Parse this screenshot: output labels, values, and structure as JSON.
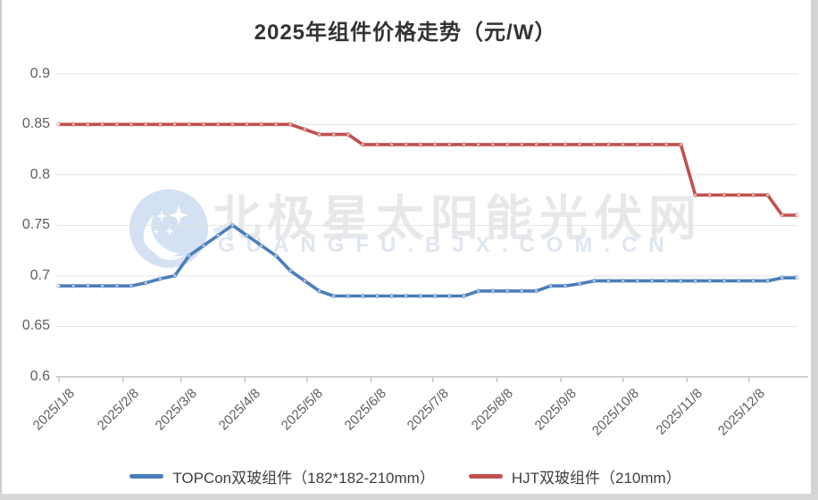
{
  "title": "2025年组件价格走势（元/W）",
  "watermark": {
    "brand_text": "北极星太阳能光伏网",
    "url_text": "GUANGFU.BJX.COM.CN",
    "logo": "crescent-moon-with-stars",
    "logo_color": "#d3e1f3"
  },
  "colors": {
    "topcon_line": "#4a7ebb",
    "hjt_line": "#c0504d",
    "gridline": "#e4e4e4",
    "axis": "#c2c2c2",
    "axis_text": "#5e5e5e",
    "title_text": "#333333"
  },
  "chart_data": {
    "type": "line",
    "title": "2025年组件价格走势（元/W）",
    "xlabel": "",
    "ylabel": "元/W",
    "ylim": [
      0.6,
      0.9
    ],
    "yticks": [
      0.6,
      0.65,
      0.7,
      0.75,
      0.8,
      0.85,
      0.9
    ],
    "xticks": [
      "2025/1/8",
      "2025/2/8",
      "2025/3/8",
      "2025/4/8",
      "2025/5/8",
      "2025/6/8",
      "2025/7/8",
      "2025/8/8",
      "2025/9/8",
      "2025/10/8",
      "2025/11/8",
      "2025/12/8"
    ],
    "grid": "horizontal",
    "legend_position": "bottom",
    "x": [
      "2025/1/8",
      "2025/1/15",
      "2025/1/22",
      "2025/1/29",
      "2025/2/5",
      "2025/2/12",
      "2025/2/19",
      "2025/2/26",
      "2025/3/5",
      "2025/3/12",
      "2025/3/19",
      "2025/3/26",
      "2025/4/2",
      "2025/4/9",
      "2025/4/16",
      "2025/4/23",
      "2025/4/30",
      "2025/5/7",
      "2025/5/14",
      "2025/5/21",
      "2025/5/28",
      "2025/6/4",
      "2025/6/11",
      "2025/6/18",
      "2025/6/25",
      "2025/7/2",
      "2025/7/9",
      "2025/7/16",
      "2025/7/23",
      "2025/7/30",
      "2025/8/6",
      "2025/8/13",
      "2025/8/20",
      "2025/8/27",
      "2025/9/3",
      "2025/9/10",
      "2025/9/17",
      "2025/9/24",
      "2025/10/1",
      "2025/10/8",
      "2025/10/15",
      "2025/10/22",
      "2025/10/29",
      "2025/11/5",
      "2025/11/12",
      "2025/11/19",
      "2025/11/26",
      "2025/12/3",
      "2025/12/10",
      "2025/12/17",
      "2025/12/24",
      "2025/12/31"
    ],
    "series": [
      {
        "name": "TOPCon双玻组件（182*182-210mm）",
        "color": "#4a7ebb",
        "values": [
          0.69,
          0.69,
          0.69,
          0.69,
          0.69,
          0.69,
          0.693,
          0.697,
          0.7,
          0.72,
          0.73,
          0.74,
          0.75,
          0.74,
          0.73,
          0.72,
          0.705,
          0.695,
          0.685,
          0.68,
          0.68,
          0.68,
          0.68,
          0.68,
          0.68,
          0.68,
          0.68,
          0.68,
          0.68,
          0.685,
          0.685,
          0.685,
          0.685,
          0.685,
          0.69,
          0.69,
          0.692,
          0.695,
          0.695,
          0.695,
          0.695,
          0.695,
          0.695,
          0.695,
          0.695,
          0.695,
          0.695,
          0.695,
          0.695,
          0.695,
          0.698,
          0.698
        ]
      },
      {
        "name": "HJT双玻组件（210mm）",
        "color": "#c0504d",
        "values": [
          0.85,
          0.85,
          0.85,
          0.85,
          0.85,
          0.85,
          0.85,
          0.85,
          0.85,
          0.85,
          0.85,
          0.85,
          0.85,
          0.85,
          0.85,
          0.85,
          0.85,
          0.845,
          0.84,
          0.84,
          0.84,
          0.83,
          0.83,
          0.83,
          0.83,
          0.83,
          0.83,
          0.83,
          0.83,
          0.83,
          0.83,
          0.83,
          0.83,
          0.83,
          0.83,
          0.83,
          0.83,
          0.83,
          0.83,
          0.83,
          0.83,
          0.83,
          0.83,
          0.83,
          0.78,
          0.78,
          0.78,
          0.78,
          0.78,
          0.78,
          0.76,
          0.76
        ]
      }
    ]
  }
}
